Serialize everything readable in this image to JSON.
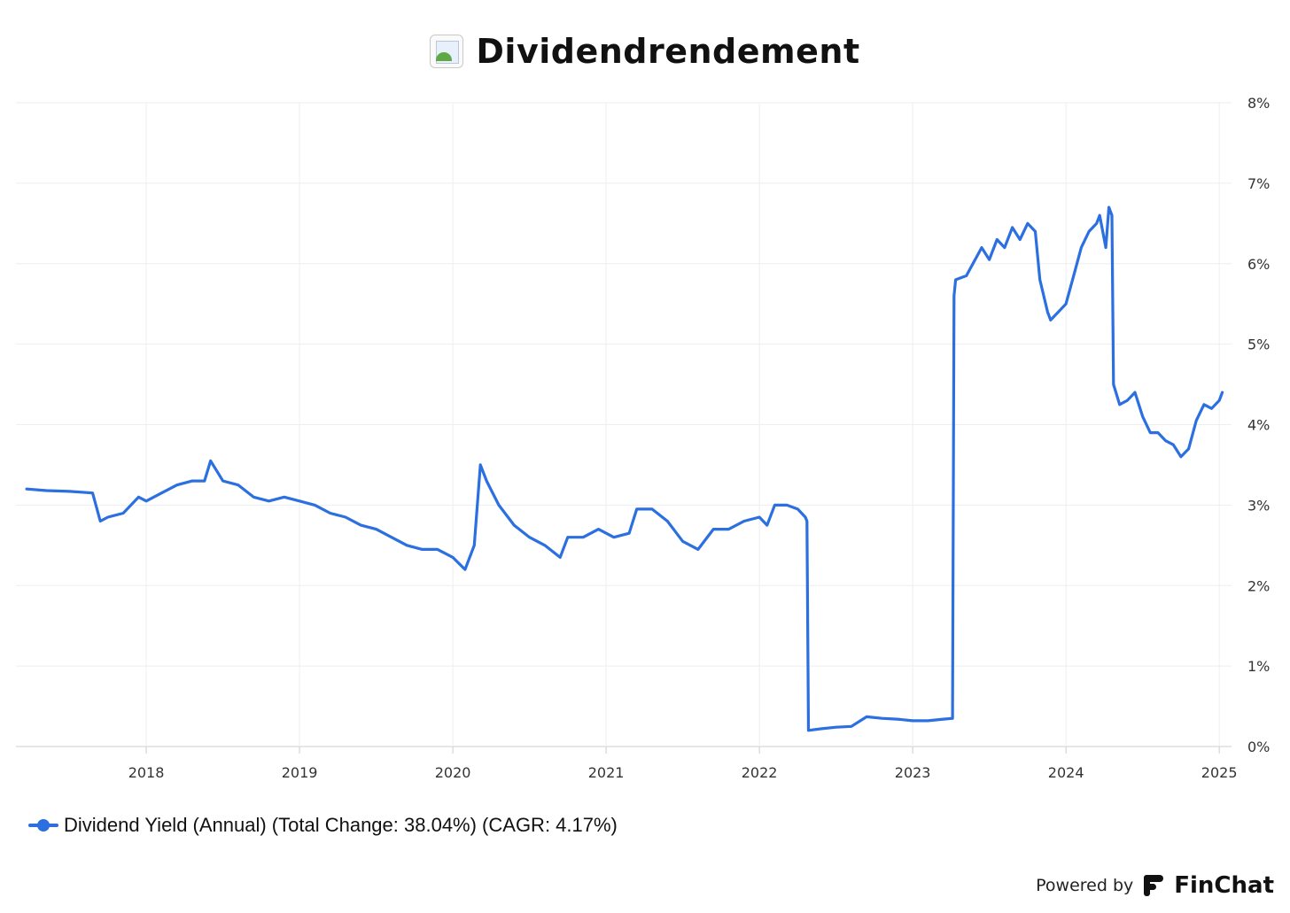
{
  "header": {
    "title": "Dividendrendement",
    "icon": "broken-image-icon"
  },
  "footer": {
    "powered_by": "Powered by",
    "brand": "FinChat",
    "brand_icon": "finchat-logo-icon"
  },
  "colors": {
    "series": "#2b6fe0",
    "grid": "#eeeeee",
    "axis": "#cccccc"
  },
  "chart_data": {
    "type": "line",
    "title": "Dividendrendement",
    "x_ticks": [
      "2018",
      "2019",
      "2020",
      "2021",
      "2022",
      "2023",
      "2024",
      "2025"
    ],
    "y_ticks": [
      "0%",
      "1%",
      "2%",
      "3%",
      "4%",
      "5%",
      "6%",
      "7%",
      "8%"
    ],
    "xlim": [
      2017.15,
      2025.08
    ],
    "ylim": [
      0,
      8
    ],
    "grid": true,
    "y_axis_side": "right",
    "legend_position": "bottom-left",
    "series": [
      {
        "name": "Dividend Yield (Annual) (Total Change: 38.04%) (CAGR: 4.17%)",
        "x": [
          2017.22,
          2017.35,
          2017.5,
          2017.65,
          2017.7,
          2017.75,
          2017.85,
          2017.95,
          2018.0,
          2018.1,
          2018.2,
          2018.3,
          2018.38,
          2018.42,
          2018.5,
          2018.6,
          2018.7,
          2018.8,
          2018.9,
          2019.0,
          2019.1,
          2019.2,
          2019.3,
          2019.4,
          2019.5,
          2019.6,
          2019.7,
          2019.8,
          2019.9,
          2020.0,
          2020.08,
          2020.14,
          2020.18,
          2020.22,
          2020.3,
          2020.4,
          2020.5,
          2020.6,
          2020.7,
          2020.75,
          2020.85,
          2020.95,
          2021.05,
          2021.15,
          2021.2,
          2021.3,
          2021.4,
          2021.5,
          2021.6,
          2021.7,
          2021.8,
          2021.9,
          2022.0,
          2022.05,
          2022.1,
          2022.18,
          2022.25,
          2022.3,
          2022.31,
          2022.32,
          2022.4,
          2022.5,
          2022.6,
          2022.7,
          2022.8,
          2022.9,
          2023.0,
          2023.1,
          2023.2,
          2023.26,
          2023.27,
          2023.28,
          2023.35,
          2023.45,
          2023.5,
          2023.55,
          2023.6,
          2023.65,
          2023.7,
          2023.75,
          2023.8,
          2023.83,
          2023.88,
          2023.9,
          2023.95,
          2024.0,
          2024.05,
          2024.1,
          2024.15,
          2024.2,
          2024.22,
          2024.26,
          2024.28,
          2024.3,
          2024.31,
          2024.35,
          2024.4,
          2024.45,
          2024.5,
          2024.55,
          2024.6,
          2024.65,
          2024.7,
          2024.75,
          2024.8,
          2024.85,
          2024.9,
          2024.95,
          2025.0,
          2025.02
        ],
        "y": [
          3.2,
          3.18,
          3.17,
          3.15,
          2.8,
          2.85,
          2.9,
          3.1,
          3.05,
          3.15,
          3.25,
          3.3,
          3.3,
          3.55,
          3.3,
          3.25,
          3.1,
          3.05,
          3.1,
          3.05,
          3.0,
          2.9,
          2.85,
          2.75,
          2.7,
          2.6,
          2.5,
          2.45,
          2.45,
          2.35,
          2.2,
          2.5,
          3.5,
          3.3,
          3.0,
          2.75,
          2.6,
          2.5,
          2.35,
          2.6,
          2.6,
          2.7,
          2.6,
          2.65,
          2.95,
          2.95,
          2.8,
          2.55,
          2.45,
          2.7,
          2.7,
          2.8,
          2.85,
          2.75,
          3.0,
          3.0,
          2.95,
          2.85,
          2.8,
          0.2,
          0.22,
          0.24,
          0.25,
          0.37,
          0.35,
          0.34,
          0.32,
          0.32,
          0.34,
          0.35,
          5.6,
          5.8,
          5.85,
          6.2,
          6.05,
          6.3,
          6.2,
          6.45,
          6.3,
          6.5,
          6.4,
          5.8,
          5.4,
          5.3,
          5.4,
          5.5,
          5.85,
          6.2,
          6.4,
          6.5,
          6.6,
          6.2,
          6.7,
          6.6,
          4.5,
          4.25,
          4.3,
          4.4,
          4.1,
          3.9,
          3.9,
          3.8,
          3.75,
          3.6,
          3.7,
          4.05,
          4.25,
          4.2,
          4.3,
          4.4
        ]
      }
    ]
  }
}
